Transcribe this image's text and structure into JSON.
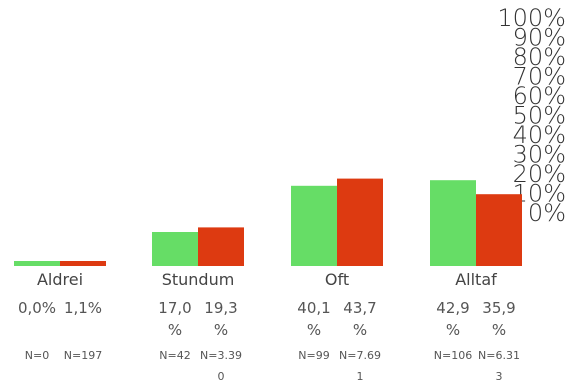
{
  "chart_data": {
    "type": "bar",
    "categories": [
      "Aldrei",
      "Stundum",
      "Oft",
      "Alltaf"
    ],
    "series": [
      {
        "color": "#66dd66",
        "values": [
          0.0,
          17.0,
          40.1,
          42.9
        ],
        "value_labels": [
          "0,0%",
          "17,0\n%",
          "40,1\n%",
          "42,9\n%"
        ],
        "n_labels": [
          "N=0",
          "N=42",
          "N=99",
          "N=106"
        ]
      },
      {
        "color": "#dd3a11",
        "values": [
          1.1,
          19.3,
          43.7,
          35.9
        ],
        "value_labels": [
          "1,1%",
          "19,3\n%",
          "43,7\n%",
          "35,9\n%"
        ],
        "n_labels": [
          "N=197",
          "N=3.39\n0",
          "N=7.69\n1",
          "N=6.31\n3"
        ]
      }
    ],
    "y_ticks": [
      "0%",
      "10%",
      "20%",
      "30%",
      "40%",
      "50%",
      "60%",
      "70%",
      "80%",
      "90%",
      "100%"
    ],
    "ylim": [
      0,
      100
    ],
    "grid": false,
    "legend": "none"
  }
}
